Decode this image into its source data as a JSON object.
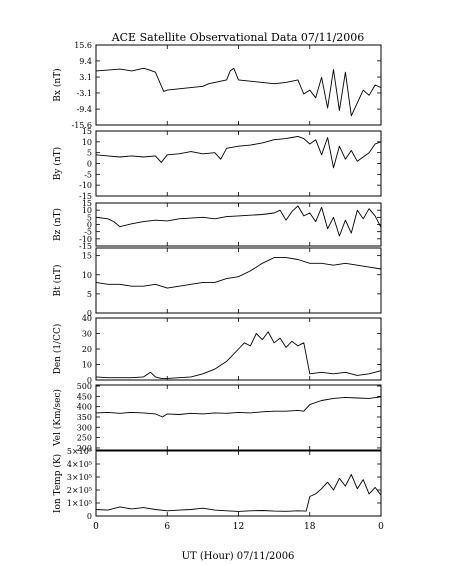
{
  "chart_data": {
    "type": "line",
    "title": "ACE Satellite Observational Data   07/11/2006",
    "xlabel": "UT (Hour)   07/11/2006",
    "x_ticks": [
      "0",
      "6",
      "12",
      "18",
      "0"
    ],
    "x_range_hours": [
      0,
      24
    ],
    "panels": [
      {
        "id": "bx",
        "ylabel": "Bx (nT)",
        "yticks": [
          "15.6",
          "9.4",
          "3.1",
          "-3.1",
          "-9.4",
          "-15.6"
        ],
        "tick_values": [
          15.6,
          9.4,
          3.1,
          -3.1,
          -9.4,
          -15.6
        ],
        "ylim": [
          -15.6,
          15.6
        ],
        "x": [
          0,
          1,
          2,
          3,
          4,
          4.4,
          5,
          5.7,
          6,
          7,
          8,
          9,
          9.5,
          10,
          10.5,
          11,
          11.3,
          11.6,
          12,
          13,
          14,
          15,
          16,
          17,
          17.5,
          18,
          18.5,
          19,
          19.5,
          20,
          20.5,
          21,
          21.5,
          22,
          22.5,
          23,
          23.5,
          24
        ],
        "values": [
          5.5,
          5.8,
          6.2,
          5.5,
          6.5,
          6.0,
          5.0,
          -2.5,
          -2.0,
          -1.5,
          -1.0,
          -0.5,
          0.5,
          1.0,
          1.5,
          2.0,
          5.5,
          6.5,
          2.0,
          1.5,
          1.0,
          0.5,
          1.0,
          2.0,
          -3.5,
          -2.0,
          -5.0,
          3.0,
          -9.0,
          6.0,
          -10.0,
          5.0,
          -12.0,
          -7.0,
          -2.0,
          -4.0,
          0.0,
          -1.0
        ]
      },
      {
        "id": "by",
        "ylabel": "By (nT)",
        "yticks": [
          "15",
          "10",
          "5",
          "0",
          "-5",
          "-10",
          "-15"
        ],
        "tick_values": [
          15,
          10,
          5,
          0,
          -5,
          -10,
          -15
        ],
        "ylim": [
          -15,
          15
        ],
        "x": [
          0,
          1,
          2,
          3,
          4,
          5,
          5.5,
          6,
          7,
          8,
          9,
          10,
          10.5,
          11,
          12,
          13,
          14,
          15,
          16,
          16.5,
          17,
          17.5,
          18,
          18.5,
          19,
          19.5,
          20,
          20.5,
          21,
          21.5,
          22,
          22.5,
          23,
          23.5,
          24
        ],
        "values": [
          4.0,
          3.5,
          3.0,
          3.5,
          3.0,
          3.5,
          0.5,
          4.0,
          4.5,
          5.5,
          4.5,
          5.0,
          2.0,
          7.0,
          8.0,
          8.5,
          9.5,
          11.0,
          11.5,
          12.0,
          12.5,
          11.5,
          9.0,
          11.0,
          4.0,
          12.0,
          -2.0,
          8.0,
          2.0,
          6.0,
          1.0,
          3.0,
          5.0,
          9.0,
          10.0
        ]
      },
      {
        "id": "bz",
        "ylabel": "Bz (nT)",
        "yticks": [
          "15",
          "10",
          "5",
          "0",
          "-5",
          "-10",
          "-15"
        ],
        "tick_values": [
          15,
          10,
          5,
          0,
          -5,
          -10,
          -15
        ],
        "ylim": [
          -15,
          15
        ],
        "x": [
          0,
          1,
          1.5,
          2,
          3,
          4,
          5,
          6,
          7,
          8,
          9,
          10,
          11,
          12,
          13,
          14,
          15,
          15.5,
          16,
          16.5,
          17,
          17.5,
          18,
          18.5,
          19,
          19.5,
          20,
          20.5,
          21,
          21.5,
          22,
          22.5,
          23,
          23.5,
          24
        ],
        "values": [
          5.0,
          4.0,
          2.0,
          -1.5,
          0.5,
          2.0,
          3.0,
          2.5,
          4.0,
          4.5,
          5.0,
          4.0,
          5.5,
          6.0,
          6.5,
          7.0,
          8.0,
          10.0,
          3.0,
          9.0,
          13.0,
          6.0,
          8.0,
          2.0,
          12.0,
          -3.0,
          5.0,
          -8.0,
          3.0,
          -6.0,
          10.0,
          4.0,
          11.0,
          6.0,
          -2.0
        ]
      },
      {
        "id": "bt",
        "ylabel": "Bt (nT)",
        "yticks": [
          "15",
          "10",
          "5",
          "0"
        ],
        "tick_values": [
          15,
          10,
          5,
          0
        ],
        "ylim": [
          0,
          17
        ],
        "x": [
          0,
          1,
          2,
          3,
          4,
          5,
          6,
          7,
          8,
          9,
          10,
          11,
          12,
          13,
          14,
          15,
          16,
          17,
          18,
          19,
          20,
          21,
          22,
          23,
          24
        ],
        "values": [
          8.0,
          7.5,
          7.5,
          7.0,
          7.0,
          7.5,
          6.5,
          7.0,
          7.5,
          8.0,
          8.0,
          9.0,
          9.5,
          11.0,
          13.0,
          14.5,
          14.5,
          14.0,
          13.0,
          13.0,
          12.5,
          13.0,
          12.5,
          12.0,
          11.5
        ]
      },
      {
        "id": "den",
        "ylabel": "Den (1/CC)",
        "yticks": [
          "40",
          "30",
          "20",
          "10",
          "0"
        ],
        "tick_values": [
          40,
          30,
          20,
          10,
          0
        ],
        "ylim": [
          0,
          40
        ],
        "x": [
          0,
          1,
          2,
          3,
          4,
          4.6,
          5,
          5.5,
          6,
          7,
          8,
          9,
          10,
          11,
          12,
          12.5,
          13,
          13.5,
          14,
          14.5,
          15,
          15.5,
          16,
          16.5,
          17,
          17.5,
          18,
          19,
          20,
          21,
          22,
          23,
          24
        ],
        "values": [
          2.0,
          1.5,
          1.5,
          1.5,
          2.0,
          5.0,
          2.0,
          1.0,
          1.0,
          1.5,
          2.0,
          4.0,
          7.0,
          12.0,
          20.0,
          24.0,
          22.0,
          30.0,
          26.0,
          31.0,
          24.0,
          27.0,
          21.0,
          25.0,
          22.0,
          24.0,
          4.0,
          5.0,
          4.0,
          5.0,
          3.0,
          4.0,
          6.0
        ]
      },
      {
        "id": "vel",
        "ylabel": "Vel (Km/sec)",
        "yticks": [
          "500",
          "450",
          "400",
          "350",
          "300",
          "250",
          "200"
        ],
        "tick_values": [
          500,
          450,
          400,
          350,
          300,
          250,
          200
        ],
        "ylim": [
          190,
          505
        ],
        "x": [
          0,
          1,
          2,
          3,
          4,
          5,
          5.6,
          6,
          7,
          8,
          9,
          10,
          11,
          12,
          13,
          14,
          15,
          16,
          17,
          17.5,
          18,
          19,
          20,
          21,
          22,
          23,
          24
        ],
        "values": [
          370,
          372,
          368,
          372,
          370,
          365,
          350,
          365,
          362,
          368,
          365,
          370,
          368,
          372,
          370,
          375,
          378,
          378,
          382,
          378,
          410,
          430,
          440,
          445,
          442,
          440,
          448
        ]
      },
      {
        "id": "temp",
        "ylabel": "Ion Temp (K)",
        "yticks": [
          "5×10⁵",
          "4×10⁵",
          "3×10⁵",
          "2×10⁵",
          "1×10⁵",
          "0"
        ],
        "tick_values": [
          500000,
          400000,
          300000,
          200000,
          100000,
          0
        ],
        "ylim": [
          0,
          500000
        ],
        "x": [
          0,
          1,
          2,
          3,
          4,
          5,
          6,
          7,
          8,
          9,
          10,
          11,
          12,
          13,
          14,
          15,
          16,
          17,
          17.7,
          18,
          18.5,
          19,
          19.5,
          20,
          20.5,
          21,
          21.5,
          22,
          22.5,
          23,
          23.5,
          24
        ],
        "values": [
          50000,
          45000,
          70000,
          55000,
          65000,
          50000,
          40000,
          45000,
          50000,
          60000,
          45000,
          40000,
          35000,
          40000,
          42000,
          38000,
          36000,
          40000,
          38000,
          150000,
          170000,
          210000,
          260000,
          200000,
          290000,
          230000,
          320000,
          210000,
          280000,
          170000,
          220000,
          160000
        ]
      }
    ]
  }
}
